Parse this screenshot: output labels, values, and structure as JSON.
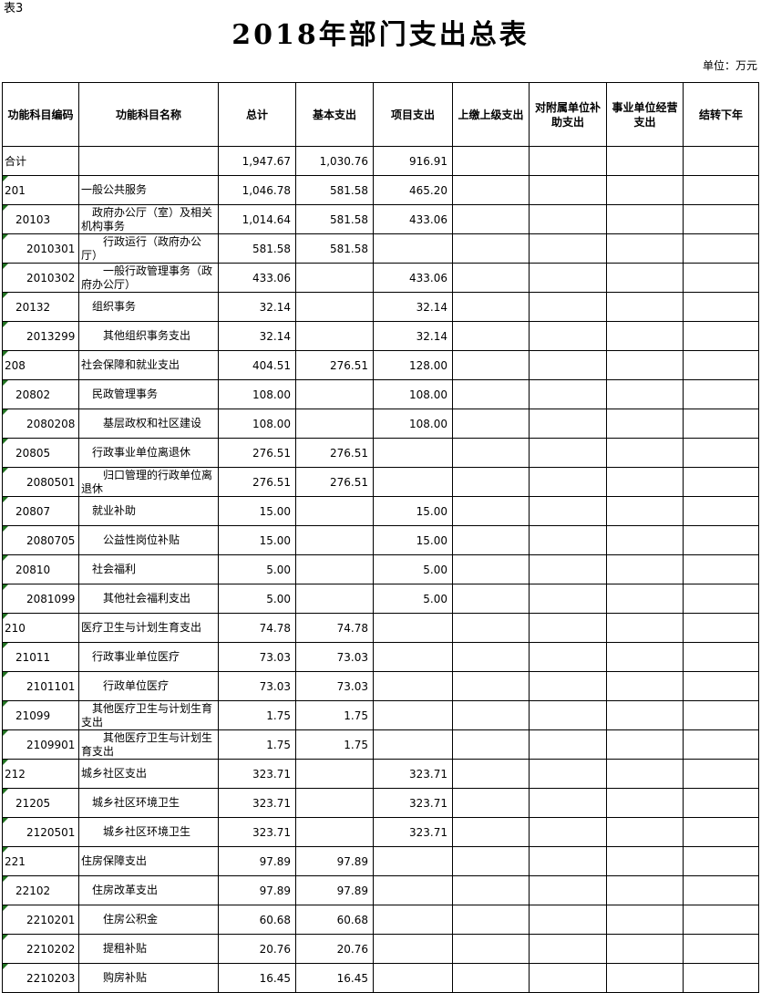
{
  "page": {
    "sheet_label": "表3",
    "title": "2018年部门支出总表",
    "unit_label": "单位：万元"
  },
  "colors": {
    "flag_green": "#217321",
    "grid_line": "#000000"
  },
  "table": {
    "columns": [
      "功能科目编码",
      "功能科目名称",
      "总计",
      "基本支出",
      "项目支出",
      "上缴上级支出",
      "对附属单位补助支出",
      "事业单位经营支出",
      "结转下年"
    ],
    "rows": [
      {
        "code": "合计",
        "name": "",
        "total": "1,947.67",
        "basic": "1,030.76",
        "project": "916.91",
        "level": 0
      },
      {
        "code": "201",
        "name": "一般公共服务",
        "total": "1,046.78",
        "basic": "581.58",
        "project": "465.20",
        "level": 1
      },
      {
        "code": "20103",
        "name": "政府办公厅（室）及相关机构事务",
        "total": "1,014.64",
        "basic": "581.58",
        "project": "433.06",
        "level": 2
      },
      {
        "code": "2010301",
        "name": "行政运行（政府办公厅）",
        "total": "581.58",
        "basic": "581.58",
        "project": "",
        "level": 3
      },
      {
        "code": "2010302",
        "name": "一般行政管理事务（政府办公厅）",
        "total": "433.06",
        "basic": "",
        "project": "433.06",
        "level": 3
      },
      {
        "code": "20132",
        "name": "组织事务",
        "total": "32.14",
        "basic": "",
        "project": "32.14",
        "level": 2
      },
      {
        "code": "2013299",
        "name": "其他组织事务支出",
        "total": "32.14",
        "basic": "",
        "project": "32.14",
        "level": 3
      },
      {
        "code": "208",
        "name": "社会保障和就业支出",
        "total": "404.51",
        "basic": "276.51",
        "project": "128.00",
        "level": 1
      },
      {
        "code": "20802",
        "name": "民政管理事务",
        "total": "108.00",
        "basic": "",
        "project": "108.00",
        "level": 2
      },
      {
        "code": "2080208",
        "name": "基层政权和社区建设",
        "total": "108.00",
        "basic": "",
        "project": "108.00",
        "level": 3
      },
      {
        "code": "20805",
        "name": "行政事业单位离退休",
        "total": "276.51",
        "basic": "276.51",
        "project": "",
        "level": 2
      },
      {
        "code": "2080501",
        "name": "归口管理的行政单位离退休",
        "total": "276.51",
        "basic": "276.51",
        "project": "",
        "level": 3
      },
      {
        "code": "20807",
        "name": "就业补助",
        "total": "15.00",
        "basic": "",
        "project": "15.00",
        "level": 2
      },
      {
        "code": "2080705",
        "name": "公益性岗位补贴",
        "total": "15.00",
        "basic": "",
        "project": "15.00",
        "level": 3
      },
      {
        "code": "20810",
        "name": "社会福利",
        "total": "5.00",
        "basic": "",
        "project": "5.00",
        "level": 2
      },
      {
        "code": "2081099",
        "name": "其他社会福利支出",
        "total": "5.00",
        "basic": "",
        "project": "5.00",
        "level": 3
      },
      {
        "code": "210",
        "name": "医疗卫生与计划生育支出",
        "total": "74.78",
        "basic": "74.78",
        "project": "",
        "level": 1
      },
      {
        "code": "21011",
        "name": "行政事业单位医疗",
        "total": "73.03",
        "basic": "73.03",
        "project": "",
        "level": 2
      },
      {
        "code": "2101101",
        "name": "行政单位医疗",
        "total": "73.03",
        "basic": "73.03",
        "project": "",
        "level": 3
      },
      {
        "code": "21099",
        "name": "其他医疗卫生与计划生育支出",
        "total": "1.75",
        "basic": "1.75",
        "project": "",
        "level": 2
      },
      {
        "code": "2109901",
        "name": "其他医疗卫生与计划生育支出",
        "total": "1.75",
        "basic": "1.75",
        "project": "",
        "level": 3
      },
      {
        "code": "212",
        "name": "城乡社区支出",
        "total": "323.71",
        "basic": "",
        "project": "323.71",
        "level": 1
      },
      {
        "code": "21205",
        "name": "城乡社区环境卫生",
        "total": "323.71",
        "basic": "",
        "project": "323.71",
        "level": 2
      },
      {
        "code": "2120501",
        "name": "城乡社区环境卫生",
        "total": "323.71",
        "basic": "",
        "project": "323.71",
        "level": 3
      },
      {
        "code": "221",
        "name": "住房保障支出",
        "total": "97.89",
        "basic": "97.89",
        "project": "",
        "level": 1
      },
      {
        "code": "22102",
        "name": "住房改革支出",
        "total": "97.89",
        "basic": "97.89",
        "project": "",
        "level": 2
      },
      {
        "code": "2210201",
        "name": "住房公积金",
        "total": "60.68",
        "basic": "60.68",
        "project": "",
        "level": 3
      },
      {
        "code": "2210202",
        "name": "提租补贴",
        "total": "20.76",
        "basic": "20.76",
        "project": "",
        "level": 3
      },
      {
        "code": "2210203",
        "name": "购房补贴",
        "total": "16.45",
        "basic": "16.45",
        "project": "",
        "level": 3
      }
    ]
  }
}
